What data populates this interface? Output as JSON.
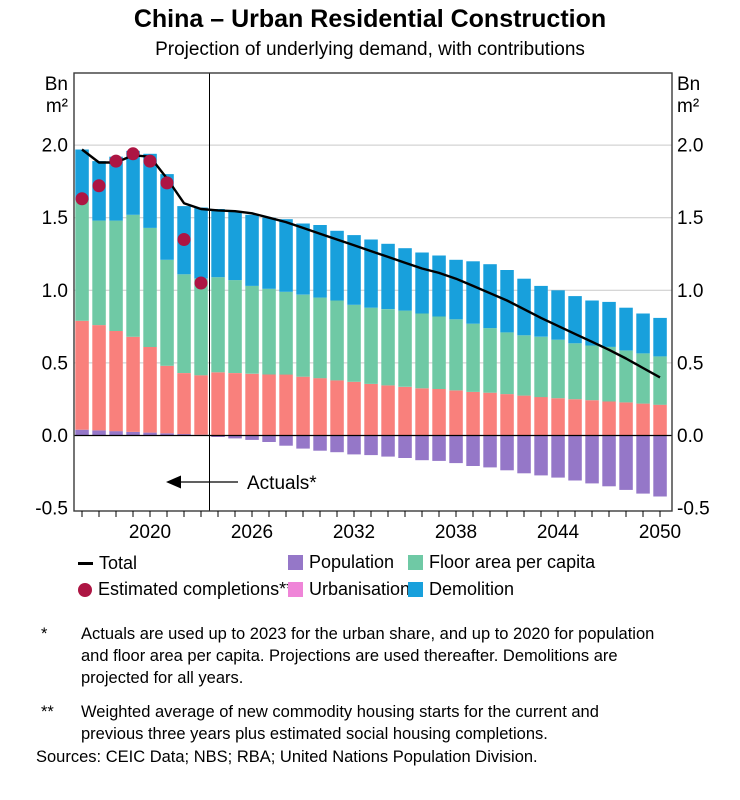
{
  "header": {
    "title": "China – Urban Residential Construction",
    "subtitle": "Projection of underlying demand, with contributions"
  },
  "chart_data": {
    "type": "bar",
    "stacked": true,
    "title": "China – Urban Residential Construction",
    "subtitle": "Projection of underlying demand, with contributions",
    "y_unit": "Bn m²",
    "ylim": [
      -0.5,
      2.5
    ],
    "ytick_labels": [
      "2.0",
      "1.5",
      "1.0",
      "0.5",
      "0.0",
      "-0.5"
    ],
    "ytick_values": [
      2.0,
      1.5,
      1.0,
      0.5,
      0.0,
      -0.5
    ],
    "xtick_labels": [
      2020,
      2026,
      2032,
      2038,
      2044,
      2050
    ],
    "grid": true,
    "x": [
      2016,
      2017,
      2018,
      2019,
      2020,
      2021,
      2022,
      2023,
      2024,
      2025,
      2026,
      2027,
      2028,
      2029,
      2030,
      2031,
      2032,
      2033,
      2034,
      2035,
      2036,
      2037,
      2038,
      2039,
      2040,
      2041,
      2042,
      2043,
      2044,
      2045,
      2046,
      2047,
      2048,
      2049,
      2050
    ],
    "series": [
      {
        "name": "Population",
        "type": "bar",
        "color": "#9577C8",
        "values": [
          0.04,
          0.035,
          0.03,
          0.025,
          0.02,
          0.015,
          0.01,
          0.005,
          -0.01,
          -0.02,
          -0.03,
          -0.045,
          -0.07,
          -0.09,
          -0.105,
          -0.115,
          -0.13,
          -0.135,
          -0.145,
          -0.155,
          -0.17,
          -0.175,
          -0.19,
          -0.21,
          -0.22,
          -0.24,
          -0.26,
          -0.275,
          -0.29,
          -0.31,
          -0.33,
          -0.35,
          -0.375,
          -0.4,
          -0.42
        ]
      },
      {
        "name": "Urbanisation",
        "type": "bar",
        "color": "#F9807C",
        "legend_color": "#EF85D8",
        "values": [
          0.75,
          0.725,
          0.69,
          0.655,
          0.59,
          0.465,
          0.42,
          0.41,
          0.435,
          0.43,
          0.425,
          0.42,
          0.42,
          0.405,
          0.395,
          0.38,
          0.37,
          0.355,
          0.345,
          0.335,
          0.325,
          0.32,
          0.31,
          0.3,
          0.295,
          0.285,
          0.275,
          0.265,
          0.257,
          0.25,
          0.243,
          0.234,
          0.228,
          0.22,
          0.212
        ]
      },
      {
        "name": "Floor area per capita",
        "type": "bar",
        "color": "#6FC9A5",
        "values": [
          0.83,
          0.72,
          0.76,
          0.84,
          0.82,
          0.73,
          0.68,
          0.665,
          0.655,
          0.64,
          0.605,
          0.59,
          0.57,
          0.565,
          0.555,
          0.55,
          0.53,
          0.525,
          0.525,
          0.525,
          0.515,
          0.5,
          0.49,
          0.47,
          0.445,
          0.425,
          0.415,
          0.415,
          0.403,
          0.385,
          0.377,
          0.376,
          0.357,
          0.345,
          0.333
        ]
      },
      {
        "name": "Demolition",
        "type": "bar",
        "color": "#18A0DC",
        "values": [
          0.35,
          0.41,
          0.44,
          0.44,
          0.51,
          0.59,
          0.47,
          0.49,
          0.47,
          0.47,
          0.49,
          0.49,
          0.5,
          0.49,
          0.5,
          0.48,
          0.48,
          0.47,
          0.45,
          0.43,
          0.42,
          0.42,
          0.41,
          0.43,
          0.44,
          0.43,
          0.39,
          0.35,
          0.34,
          0.325,
          0.31,
          0.31,
          0.295,
          0.275,
          0.265
        ]
      },
      {
        "name": "Total",
        "type": "line",
        "color": "#000000",
        "values": [
          1.97,
          1.88,
          1.88,
          1.93,
          1.92,
          1.77,
          1.6,
          1.56,
          1.55,
          1.545,
          1.53,
          1.5,
          1.47,
          1.43,
          1.39,
          1.35,
          1.31,
          1.27,
          1.23,
          1.19,
          1.15,
          1.12,
          1.08,
          1.03,
          0.98,
          0.93,
          0.87,
          0.81,
          0.755,
          0.7,
          0.645,
          0.59,
          0.53,
          0.465,
          0.4
        ]
      },
      {
        "name": "Estimated completions**",
        "type": "scatter",
        "color": "#AD1543",
        "x": [
          2016,
          2017,
          2018,
          2019,
          2020,
          2021,
          2022,
          2023
        ],
        "values": [
          1.63,
          1.72,
          1.89,
          1.94,
          1.89,
          1.74,
          1.35,
          1.05
        ]
      }
    ],
    "annotation": {
      "text": "Actuals*",
      "divider_after_year": 2023
    },
    "colors": {
      "gridline": "#C9C9C9",
      "frame": "#3A3A3A",
      "zero_line": "#000000"
    },
    "legend_position": "bottom"
  },
  "legend": {
    "row1": [
      {
        "swatch": "line",
        "color": "#000000",
        "label": "Total"
      },
      {
        "swatch": "square",
        "color": "#9577C8",
        "label": "Population"
      },
      {
        "swatch": "square",
        "color": "#6FC9A5",
        "label": "Floor area per capita"
      }
    ],
    "row2": [
      {
        "swatch": "dot",
        "color": "#AD1543",
        "label": "Estimated completions**"
      },
      {
        "swatch": "square",
        "color": "#EF85D8",
        "label": "Urbanisation"
      },
      {
        "swatch": "square",
        "color": "#18A0DC",
        "label": "Demolition"
      }
    ]
  },
  "footnotes": [
    {
      "marker": "*",
      "text": "Actuals are used up to 2023 for the urban share, and up to 2020 for population and floor area per capita. Projections are used thereafter. Demolitions are projected for all years."
    },
    {
      "marker": "**",
      "text": "Weighted average of new commodity housing starts for the current and previous three years plus estimated social housing completions."
    }
  ],
  "sources": "Sources: CEIC Data; NBS; RBA; United Nations Population Division."
}
